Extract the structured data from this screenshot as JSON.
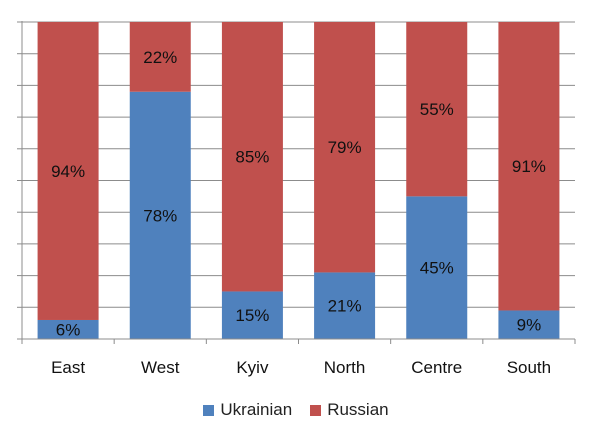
{
  "chart_data": {
    "type": "bar",
    "stacked": true,
    "categories": [
      "East",
      "West",
      "Kyiv",
      "North",
      "Centre",
      "South"
    ],
    "series": [
      {
        "name": "Ukrainian",
        "values": [
          6,
          78,
          15,
          21,
          45,
          9
        ],
        "labels": [
          "6%",
          "78%",
          "15%",
          "21%",
          "45%",
          "9%"
        ],
        "color": "#4F81BD"
      },
      {
        "name": "Russian",
        "values": [
          94,
          22,
          85,
          79,
          55,
          91
        ],
        "labels": [
          "94%",
          "22%",
          "85%",
          "79%",
          "55%",
          "91%"
        ],
        "color": "#C0504D"
      }
    ],
    "ylim": [
      0,
      100
    ],
    "grid": true,
    "legend_position": "bottom"
  }
}
